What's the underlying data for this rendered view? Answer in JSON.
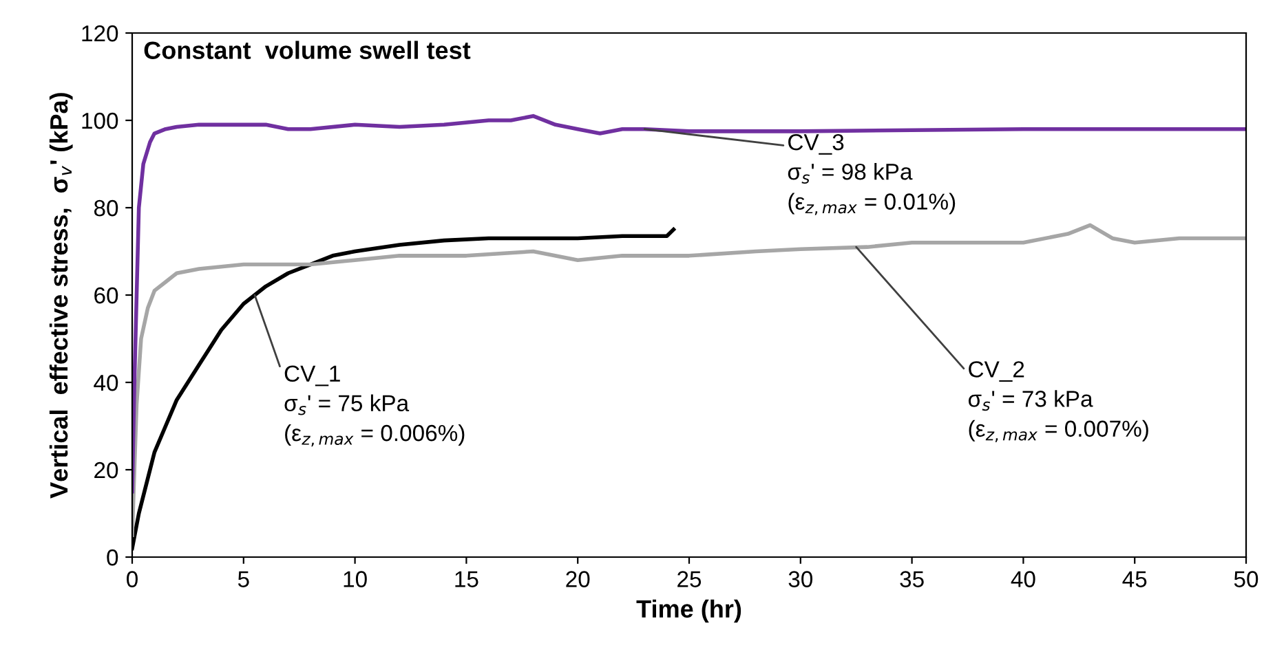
{
  "chart_data": {
    "type": "line",
    "title": "Constant  volume swell test",
    "xlabel": "Time (hr)",
    "ylabel": "Vertical  effective stress,  σ$_{v}$' (kPa)",
    "xlim": [
      0,
      50
    ],
    "xticks": [
      0,
      5,
      10,
      15,
      20,
      25,
      30,
      35,
      40,
      45,
      50
    ],
    "ylim": [
      0,
      120
    ],
    "yticks": [
      0,
      20,
      40,
      60,
      80,
      100,
      120
    ],
    "grid": false,
    "legend": false,
    "marker": "none",
    "line_style": "solid",
    "series": [
      {
        "color": "#000000",
        "x": [
          0,
          0.3,
          0.7,
          1,
          1.5,
          2,
          3,
          4,
          5,
          6,
          7,
          8,
          9,
          10,
          12,
          14,
          16,
          18,
          20,
          22,
          24,
          24.3
        ],
        "values": [
          2,
          10,
          18,
          24,
          30,
          36,
          44,
          52,
          58,
          62,
          65,
          67,
          69,
          70,
          71.5,
          72.5,
          73,
          73,
          73,
          73.5,
          73.5,
          75
        ]
      },
      {
        "color": "#a6a6a6",
        "x": [
          0,
          0.1,
          0.2,
          0.4,
          0.7,
          1,
          1.5,
          2,
          3,
          5,
          8,
          10,
          12,
          15,
          18,
          20,
          22,
          25,
          28,
          30,
          33,
          35,
          37,
          40,
          42,
          43,
          44,
          45,
          47,
          48,
          50
        ],
        "values": [
          5,
          20,
          35,
          50,
          57,
          61,
          63,
          65,
          66,
          67,
          67,
          68,
          69,
          69,
          70,
          68,
          69,
          69,
          70,
          70.5,
          71,
          72,
          72,
          72,
          74,
          76,
          73,
          72,
          73,
          73,
          73
        ]
      },
      {
        "color": "#7030a0",
        "x": [
          0,
          0.1,
          0.2,
          0.3,
          0.5,
          0.8,
          1,
          1.5,
          2,
          3,
          5,
          6,
          7,
          8,
          10,
          12,
          14,
          16,
          17,
          18,
          19,
          20,
          21,
          22,
          23,
          25,
          30,
          40,
          50
        ],
        "values": [
          15,
          40,
          60,
          80,
          90,
          95,
          97,
          98,
          98.5,
          99,
          99,
          99,
          98,
          98,
          99,
          98.5,
          99,
          100,
          100,
          101,
          99,
          98,
          97,
          98,
          98,
          97.5,
          97.5,
          98,
          98
        ]
      }
    ],
    "annotations": [
      {
        "text": "CV_1\nσ$_{s}$' = 75 kPa\n(ε$_{z,max}$ = 0.006%)",
        "x": 5.5,
        "y": 60
      },
      {
        "text": "CV_3\nσ$_{s}$' = 98 kPa\n(ε$_{z,max}$ = 0.01%)",
        "x": 23,
        "y": 98
      },
      {
        "text": "CV_2\nσ$_{s}$' = 73 kPa\n(ε$_{z,max}$ = 0.007%)",
        "x": 32.5,
        "y": 71
      }
    ]
  }
}
